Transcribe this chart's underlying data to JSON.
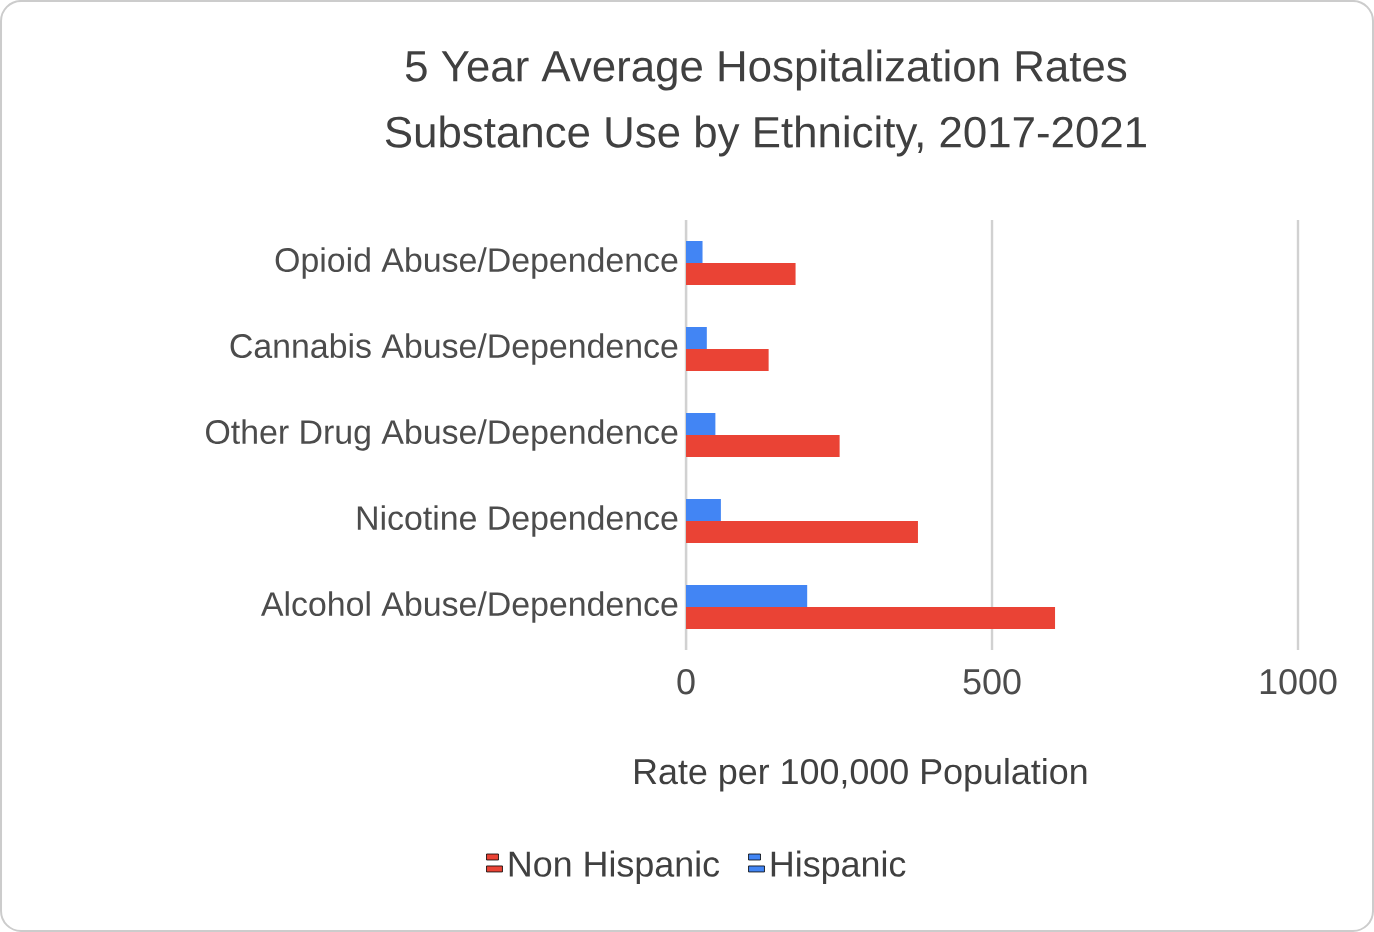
{
  "chart_data": {
    "type": "bar",
    "orientation": "horizontal",
    "title": "5 Year Average Hospitalization Rates",
    "subtitle": "Substance Use by Ethnicity, 2017-2021",
    "xlabel": "Rate per 100,000 Population",
    "categories": [
      "Opioid Abuse/Dependence",
      "Cannabis Abuse/Dependence",
      "Other Drug Abuse/Dependence",
      "Nicotine Dependence",
      "Alcohol Abuse/Dependence"
    ],
    "series": [
      {
        "name": "Non Hispanic",
        "color": "#ea4335",
        "values": [
          179,
          135,
          251,
          379,
          603
        ]
      },
      {
        "name": "Hispanic",
        "color": "#4285f4",
        "values": [
          27,
          34,
          48,
          57,
          198
        ]
      }
    ],
    "xlim": [
      0,
      1000
    ],
    "xticks": [
      0,
      500,
      1000
    ],
    "grid": "x",
    "legend": "bottom"
  }
}
